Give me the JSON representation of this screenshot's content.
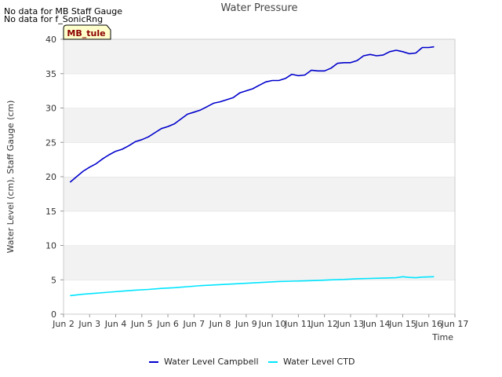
{
  "notes": [
    "No data for MB Staff Gauge",
    "No data for f_SonicRng"
  ],
  "badge": "MB_tule",
  "chart_data": {
    "type": "line",
    "title": "Water Pressure",
    "xlabel": "Time",
    "ylabel": "Water Level (cm), Staff Gauge (cm)",
    "xlim": [
      2,
      17
    ],
    "ylim": [
      0,
      40
    ],
    "x_ticks": [
      2,
      3,
      4,
      5,
      6,
      7,
      8,
      9,
      10,
      11,
      12,
      13,
      14,
      15,
      16,
      17
    ],
    "x_tick_labels": [
      "Jun 2",
      "Jun 3",
      "Jun 4",
      "Jun 5",
      "Jun 6",
      "Jun 7",
      "Jun 8",
      "Jun 9",
      "Jun 10",
      "Jun 11",
      "Jun 12",
      "Jun 13",
      "Jun 14",
      "Jun 15",
      "Jun 16",
      "Jun 17"
    ],
    "y_ticks": [
      0,
      5,
      10,
      15,
      20,
      25,
      30,
      35,
      40
    ],
    "grid": "horizontal alternating bands",
    "legend": "bottom-center",
    "series": [
      {
        "name": "Water Level Campbell",
        "color": "#0000cc",
        "x": [
          2.25,
          2.5,
          2.75,
          3.0,
          3.25,
          3.5,
          3.75,
          4.0,
          4.25,
          4.5,
          4.75,
          5.0,
          5.25,
          5.5,
          5.75,
          6.0,
          6.25,
          6.5,
          6.75,
          7.0,
          7.25,
          7.5,
          7.75,
          8.0,
          8.25,
          8.5,
          8.75,
          9.0,
          9.25,
          9.5,
          9.75,
          10.0,
          10.25,
          10.5,
          10.75,
          11.0,
          11.25,
          11.5,
          11.75,
          12.0,
          12.25,
          12.5,
          12.75,
          13.0,
          13.25,
          13.5,
          13.75,
          14.0,
          14.25,
          14.5,
          14.75,
          15.0,
          15.25,
          15.5,
          15.75,
          16.0,
          16.2
        ],
        "values": [
          19.2,
          20.0,
          20.8,
          21.4,
          21.9,
          22.6,
          23.2,
          23.7,
          24.0,
          24.5,
          25.1,
          25.4,
          25.8,
          26.4,
          27.0,
          27.3,
          27.7,
          28.4,
          29.1,
          29.4,
          29.7,
          30.2,
          30.7,
          30.9,
          31.2,
          31.5,
          32.2,
          32.5,
          32.8,
          33.3,
          33.8,
          34.0,
          34.0,
          34.3,
          34.9,
          34.7,
          34.8,
          35.5,
          35.4,
          35.4,
          35.8,
          36.5,
          36.6,
          36.6,
          36.9,
          37.6,
          37.8,
          37.6,
          37.7,
          38.2,
          38.4,
          38.2,
          37.9,
          38.0,
          38.8,
          38.8,
          38.9
        ]
      },
      {
        "name": "Water Level CTD",
        "color": "#00e5ff",
        "x": [
          2.25,
          2.75,
          3.25,
          3.75,
          4.25,
          4.75,
          5.25,
          5.75,
          6.25,
          6.75,
          7.25,
          7.75,
          8.25,
          8.75,
          9.25,
          9.75,
          10.25,
          10.75,
          11.25,
          11.75,
          12.25,
          12.75,
          13.25,
          13.75,
          14.25,
          14.75,
          15.0,
          15.25,
          15.5,
          15.75,
          16.2
        ],
        "values": [
          2.7,
          2.9,
          3.05,
          3.2,
          3.35,
          3.5,
          3.6,
          3.75,
          3.85,
          4.0,
          4.15,
          4.25,
          4.35,
          4.45,
          4.55,
          4.65,
          4.75,
          4.8,
          4.85,
          4.9,
          5.0,
          5.05,
          5.15,
          5.2,
          5.25,
          5.3,
          5.45,
          5.35,
          5.3,
          5.4,
          5.45
        ]
      }
    ]
  }
}
